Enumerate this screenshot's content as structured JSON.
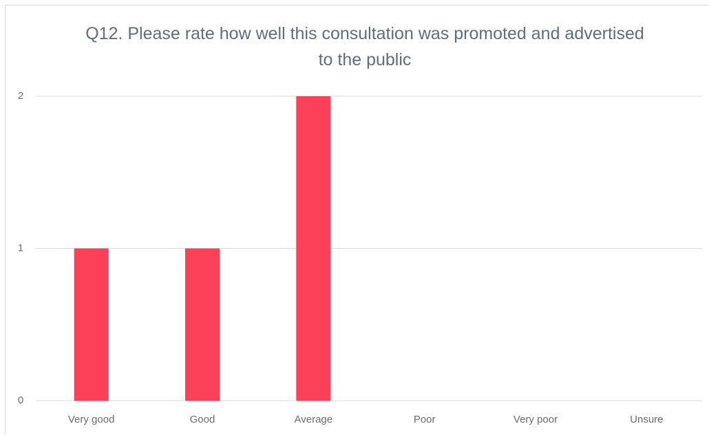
{
  "chart_data": {
    "type": "bar",
    "title": "Q12. Please rate how well this consultation was promoted and advertised to the public",
    "categories": [
      "Very good",
      "Good",
      "Average",
      "Poor",
      "Very poor",
      "Unsure"
    ],
    "values": [
      1,
      1,
      2,
      0,
      0,
      0
    ],
    "color": "#fc4058",
    "ylim": [
      0,
      2
    ],
    "yticks": [
      0,
      1,
      2
    ],
    "grid": true
  }
}
